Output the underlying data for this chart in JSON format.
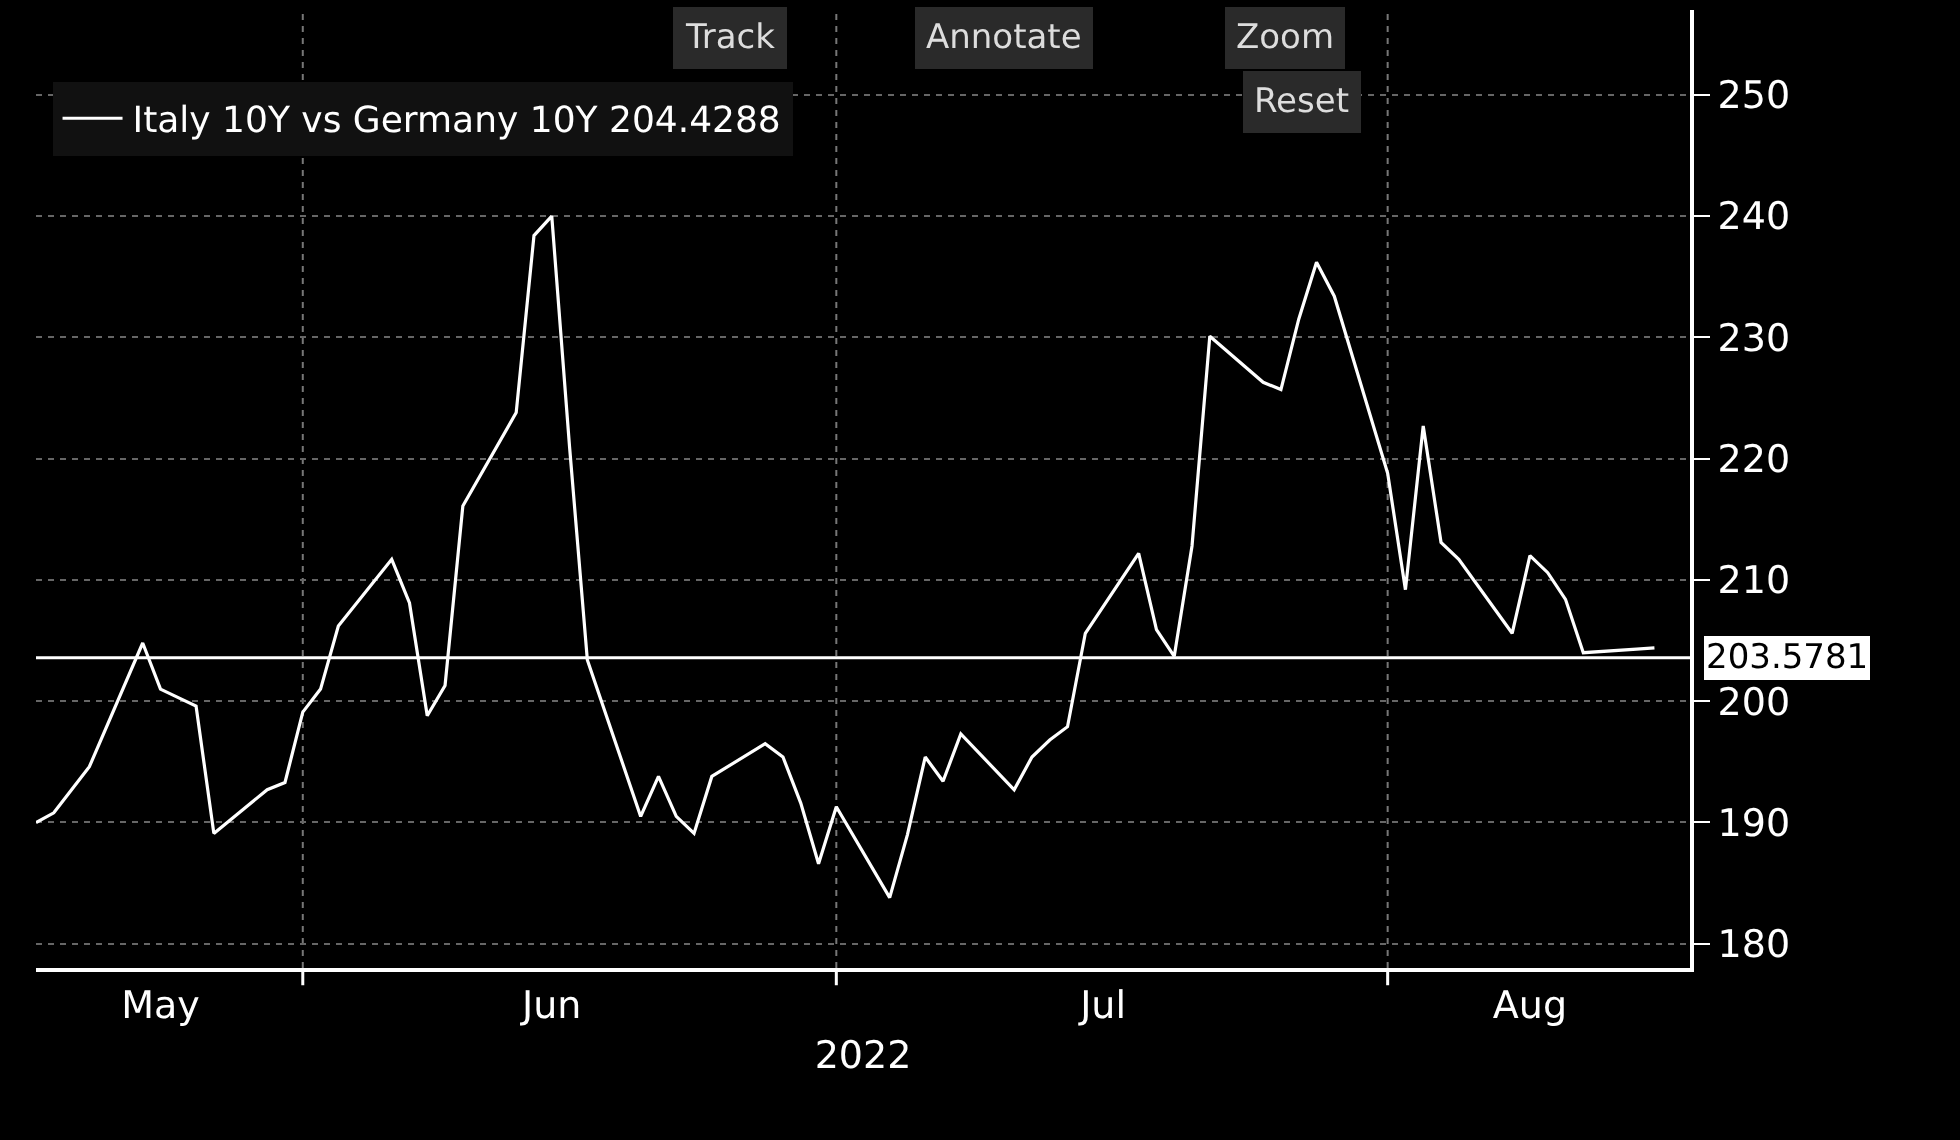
{
  "chart_data": {
    "type": "line",
    "xlabel": "2022",
    "x": [
      "2022-05-17",
      "2022-05-18",
      "2022-05-19",
      "2022-05-20",
      "2022-05-23",
      "2022-05-24",
      "2022-05-25",
      "2022-05-26",
      "2022-05-27",
      "2022-05-30",
      "2022-05-31",
      "2022-06-01",
      "2022-06-02",
      "2022-06-03",
      "2022-06-06",
      "2022-06-07",
      "2022-06-08",
      "2022-06-09",
      "2022-06-10",
      "2022-06-13",
      "2022-06-14",
      "2022-06-15",
      "2022-06-16",
      "2022-06-17",
      "2022-06-20",
      "2022-06-21",
      "2022-06-22",
      "2022-06-23",
      "2022-06-24",
      "2022-06-27",
      "2022-06-28",
      "2022-06-29",
      "2022-06-30",
      "2022-07-01",
      "2022-07-04",
      "2022-07-05",
      "2022-07-06",
      "2022-07-07",
      "2022-07-08",
      "2022-07-11",
      "2022-07-12",
      "2022-07-13",
      "2022-07-14",
      "2022-07-15",
      "2022-07-18",
      "2022-07-19",
      "2022-07-20",
      "2022-07-21",
      "2022-07-22",
      "2022-07-25",
      "2022-07-26",
      "2022-07-27",
      "2022-07-28",
      "2022-07-29",
      "2022-08-01",
      "2022-08-02",
      "2022-08-03",
      "2022-08-04",
      "2022-08-05",
      "2022-08-08",
      "2022-08-09",
      "2022-08-10",
      "2022-08-11",
      "2022-08-12",
      "2022-08-15",
      "2022-08-16"
    ],
    "series": [
      {
        "name": "Italy 10Y vs Germany 10Y 204.4288",
        "color": "#ffffff",
        "values": [
          190.0,
          190.8,
          192.7,
          194.6,
          204.8,
          201.0,
          200.3,
          199.6,
          189.1,
          192.7,
          193.3,
          199.1,
          201.0,
          206.2,
          211.7,
          208.1,
          198.8,
          201.3,
          216.1,
          223.8,
          238.4,
          240.0,
          221.0,
          203.4,
          190.5,
          193.8,
          190.5,
          189.1,
          193.8,
          196.5,
          195.4,
          191.6,
          186.6,
          191.3,
          183.8,
          189.0,
          195.4,
          193.4,
          197.3,
          192.7,
          195.4,
          196.8,
          197.9,
          205.6,
          212.2,
          205.9,
          203.7,
          212.8,
          230.1,
          226.3,
          225.7,
          231.5,
          236.2,
          233.4,
          218.8,
          209.2,
          222.7,
          213.1,
          211.7,
          205.6,
          212.0,
          210.6,
          208.4,
          204.0,
          204.3,
          204.4
        ]
      }
    ],
    "xlim": [
      "2022-05-17",
      "2022-08-18"
    ],
    "xticks": [
      {
        "value": "2022-05-24",
        "label": "May"
      },
      {
        "value": "2022-06-01",
        "label": null
      },
      {
        "value": "2022-06-15",
        "label": "Jun"
      },
      {
        "value": "2022-07-01",
        "label": null
      },
      {
        "value": "2022-07-16",
        "label": "Jul"
      },
      {
        "value": "2022-08-01",
        "label": null
      },
      {
        "value": "2022-08-09",
        "label": "Aug"
      }
    ],
    "ylim": [
      178,
      257
    ],
    "yticks": [
      180,
      190,
      200,
      210,
      220,
      230,
      240,
      250
    ],
    "ref_lines": [
      {
        "axis": "y",
        "value": 203.5781,
        "label": "203.5781",
        "color": "#ffffff"
      }
    ],
    "annotations": [
      "Track",
      "Annotate",
      "Zoom",
      "Reset"
    ],
    "grid": true,
    "legend": "top left",
    "marker": "none",
    "line_style": "solid"
  }
}
